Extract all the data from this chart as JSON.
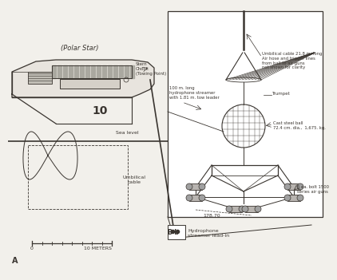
{
  "bg_color": "#f2f0eb",
  "line_color": "#3a3530",
  "fig_bg": "#ffffff",
  "figure_label_A": "A",
  "figure_label_B": "B b",
  "ship_label": "(Polar Star)",
  "ship_number": "10",
  "sea_level_label": "Sea level",
  "stern_chock_label": "Stern\nChock\n(Towing Point)",
  "umbilical_cable_label": "Umbilical\ncable",
  "scale_label_0": "0",
  "scale_label_10": "10 METERS",
  "hydrophone_streamer_label": "Hydrophone\nstreamer lead-in",
  "detail_labels": {
    "umbilical": "Umbilical cable 21.8 m. long\nAir hose and trigger lines\nfrom ball to air guns\nnot shown for clarity",
    "trumpet": "Trumpet",
    "ball": "Cast steel ball\n72.4 cm. dia.,  1,675. kg.",
    "hydrophone": "100 m. long\nhydrophone streamer\nwith 1.81 m. tow leader",
    "air_guns": "6 ea. bolt 1500\nseries air guns",
    "dimension": "178.70"
  }
}
